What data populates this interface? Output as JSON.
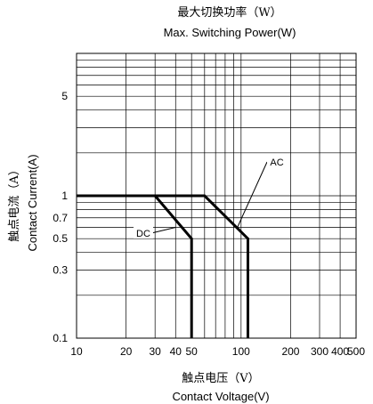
{
  "chart_data": {
    "type": "line",
    "title": "最大切换功率（W）",
    "subtitle": "Max. Switching Power(W)",
    "xlabel": "触点电压（V）",
    "xlabel_en": "Contact Voltage(V)",
    "ylabel": "触点电流（A）",
    "ylabel_en": "Contact Current(A)",
    "x_scale": "log",
    "y_scale": "log",
    "xlim": [
      10,
      500
    ],
    "ylim": [
      0.1,
      10
    ],
    "x_ticks": [
      10,
      20,
      30,
      40,
      50,
      100,
      200,
      300,
      400,
      500
    ],
    "x_tick_labels": [
      "10",
      "20",
      "30",
      "40",
      "50",
      "100",
      "200",
      "300",
      "400",
      "500"
    ],
    "y_ticks": [
      0.1,
      0.3,
      0.5,
      0.7,
      1,
      5
    ],
    "y_tick_labels": [
      "0.1",
      "0.3",
      "0.5",
      "0.7",
      "1",
      "5"
    ],
    "grid": true,
    "series": [
      {
        "name": "DC",
        "points": [
          [
            10,
            1.0
          ],
          [
            30,
            1.0
          ],
          [
            50,
            0.5
          ],
          [
            50,
            0.1
          ]
        ]
      },
      {
        "name": "AC",
        "points": [
          [
            10,
            1.0
          ],
          [
            60,
            1.0
          ],
          [
            110,
            0.5
          ],
          [
            110,
            0.1
          ]
        ]
      }
    ],
    "colors": {
      "line": "#000000",
      "grid": "#000000",
      "background": "#ffffff"
    }
  }
}
